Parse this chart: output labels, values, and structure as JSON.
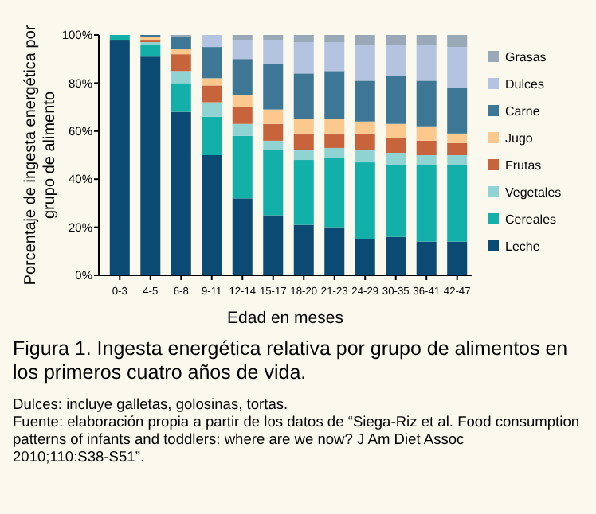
{
  "chart_data": {
    "type": "bar",
    "stacked": true,
    "title": "Figura 1. Ingesta energética relativa por grupo de alimentos en los primeros cuatro años de vida.",
    "xlabel": "Edad en meses",
    "ylabel": "Porcentaje de ingesta energética por grupo de alimento",
    "categories": [
      "0-3",
      "4-5",
      "6-8",
      "9-11",
      "12-14",
      "15-17",
      "18-20",
      "21-23",
      "24-29",
      "30-35",
      "36-41",
      "42-47"
    ],
    "series": [
      {
        "name": "Leche",
        "color": "#0b4a72",
        "values": [
          98,
          91,
          68,
          50,
          32,
          25,
          21,
          20,
          15,
          16,
          14,
          14
        ]
      },
      {
        "name": "Cereales",
        "color": "#12b0a8",
        "values": [
          2,
          5,
          12,
          16,
          26,
          27,
          27,
          29,
          32,
          30,
          32,
          32
        ]
      },
      {
        "name": "Vegetales",
        "color": "#8fd3d3",
        "values": [
          0,
          1,
          5,
          6,
          5,
          4,
          4,
          4,
          5,
          5,
          4,
          4
        ]
      },
      {
        "name": "Frutas",
        "color": "#c8643c",
        "values": [
          0,
          1,
          7,
          7,
          7,
          7,
          7,
          6,
          7,
          6,
          6,
          5
        ]
      },
      {
        "name": "Jugo",
        "color": "#fbc98e",
        "values": [
          0,
          1,
          2,
          3,
          5,
          6,
          6,
          6,
          5,
          6,
          6,
          4
        ]
      },
      {
        "name": "Carne",
        "color": "#3e7795",
        "values": [
          0,
          1,
          5,
          13,
          15,
          19,
          19,
          20,
          17,
          20,
          19,
          19
        ]
      },
      {
        "name": "Dulces",
        "color": "#b3c3e0",
        "values": [
          0,
          0,
          0,
          5,
          8,
          10,
          13,
          12,
          15,
          13,
          15,
          17
        ]
      },
      {
        "name": "Grasas",
        "color": "#9aa9b8",
        "values": [
          0,
          0,
          1,
          0,
          2,
          2,
          3,
          3,
          4,
          4,
          4,
          5
        ]
      }
    ],
    "ylim": [
      0,
      100
    ],
    "yticks": [
      {
        "value": 0,
        "label": "0%"
      },
      {
        "value": 20,
        "label": "20%"
      },
      {
        "value": 40,
        "label": "40%"
      },
      {
        "value": 60,
        "label": "60%"
      },
      {
        "value": 80,
        "label": "80%"
      },
      {
        "value": 100,
        "label": "100%"
      }
    ],
    "grid": false,
    "legend": "right",
    "annotations": [
      "Dulces: incluye galletas, golosinas, tortas.",
      "Fuente: elaboración propia a partir de los datos de “Siega-Riz et al. Food consumption patterns of infants and toddlers: where are we now? J Am Diet Assoc 2010;110:S38-S51”."
    ]
  }
}
